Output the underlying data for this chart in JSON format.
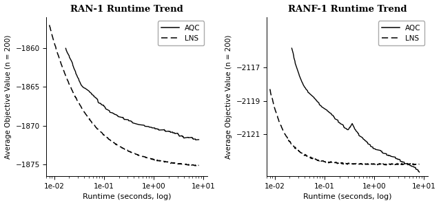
{
  "left": {
    "title": "RAN-1 Runtime Trend",
    "ylabel": "Average Objective Value (n = 200)",
    "xlabel": "Runtime (seconds, log)",
    "xlim": [
      0.007,
      12
    ],
    "ylim": [
      -1876.5,
      -1856.0
    ],
    "yticks": [
      -1875,
      -1870,
      -1865,
      -1860
    ]
  },
  "right": {
    "title": "RANF-1 Runtime Trend",
    "ylabel": "Average Objective Value (n = 200)",
    "xlabel": "Runtime (seconds, log)",
    "xlim": [
      0.007,
      12
    ],
    "ylim": [
      -2123.5,
      -2114.0
    ],
    "yticks": [
      -2121,
      -2119,
      -2117
    ]
  },
  "line_color": "#000000",
  "bg_color": "#ffffff"
}
